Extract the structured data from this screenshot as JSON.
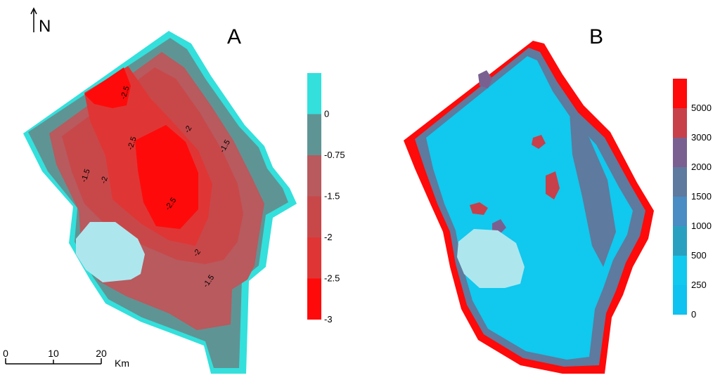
{
  "north_arrow": {
    "label": "N"
  },
  "scale_bar": {
    "ticks": [
      "0",
      "10",
      "20"
    ],
    "unit": "Km"
  },
  "panels": [
    {
      "letter": "A",
      "legend": {
        "tick_labels": [
          "0",
          "-0.75",
          "-1.5",
          "-2",
          "-2.5",
          "-3"
        ],
        "colors": [
          "#33e0dc",
          "#5f9494",
          "#b85a5e",
          "#c8484a",
          "#e03535",
          "#ff0a0a"
        ]
      },
      "contour_labels": [
        "-2.5",
        "-2.5",
        "-2",
        "-1.5",
        "-1.5",
        "-2",
        "-2.5",
        "-2",
        "-1.5"
      ]
    },
    {
      "letter": "B",
      "legend": {
        "tick_labels": [
          "5000",
          "3000",
          "2000",
          "1500",
          "1000",
          "500",
          "250",
          "0"
        ],
        "colors": [
          "#ff0a0a",
          "#c8404a",
          "#7a6090",
          "#5e7a9e",
          "#4a8cc4",
          "#2aa0c0",
          "#11c8ee",
          "#0fc2f0"
        ]
      }
    }
  ]
}
